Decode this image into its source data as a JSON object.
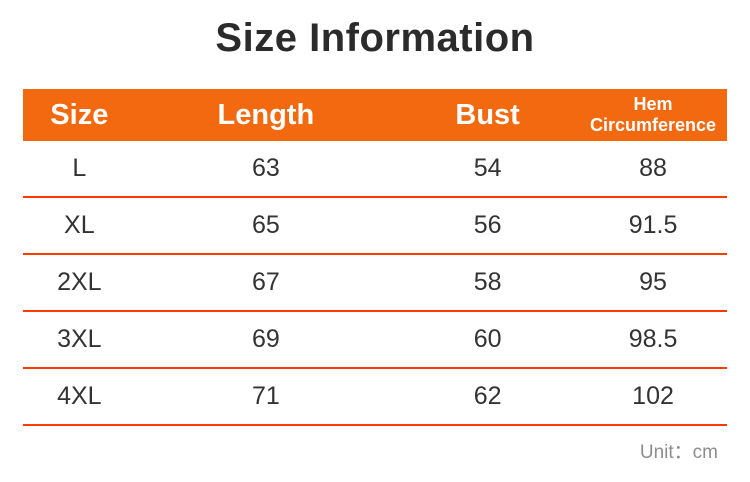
{
  "page": {
    "title": "Size Information",
    "unit_label": "Unit：cm"
  },
  "colors": {
    "header_bg": "#f2690f",
    "divider": "#ff3c00",
    "title_text": "#2b2b2b",
    "body_text": "#333333",
    "unit_text": "#8e8e8e",
    "header_text": "#ffffff"
  },
  "table": {
    "headers": [
      {
        "label": "Size"
      },
      {
        "label": "Length"
      },
      {
        "label": "Bust"
      },
      {
        "label": "Hem Circumference",
        "line1": "Hem",
        "line2": "Circumference"
      }
    ],
    "rows": [
      {
        "size": "L",
        "length": "63",
        "bust": "54",
        "hem": "88"
      },
      {
        "size": "XL",
        "length": "65",
        "bust": "56",
        "hem": "91.5"
      },
      {
        "size": "2XL",
        "length": "67",
        "bust": "58",
        "hem": "95"
      },
      {
        "size": "3XL",
        "length": "69",
        "bust": "60",
        "hem": "98.5"
      },
      {
        "size": "4XL",
        "length": "71",
        "bust": "62",
        "hem": "102"
      }
    ]
  },
  "chart_data": {
    "type": "table",
    "title": "Size Information",
    "columns": [
      "Size",
      "Length",
      "Bust",
      "Hem Circumference"
    ],
    "rows": [
      [
        "L",
        63,
        54,
        88
      ],
      [
        "XL",
        65,
        56,
        91.5
      ],
      [
        "2XL",
        67,
        58,
        95
      ],
      [
        "3XL",
        69,
        60,
        98.5
      ],
      [
        "4XL",
        71,
        62,
        102
      ]
    ],
    "unit": "cm"
  }
}
